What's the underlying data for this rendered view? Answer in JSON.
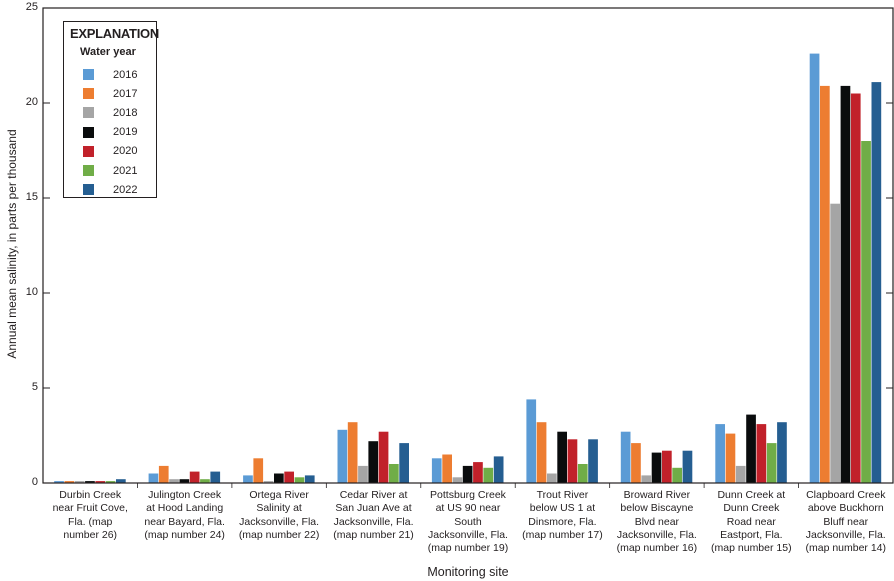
{
  "chart_data": {
    "type": "bar",
    "title": "",
    "xlabel": "Monitoring site",
    "ylabel": "Annual mean salinity, in parts per thousand",
    "ylim": [
      0,
      25
    ],
    "yticks": [
      0,
      5,
      10,
      15,
      20,
      25
    ],
    "grid": false,
    "legend_position": "upper-left",
    "legend_title": "EXPLANATION",
    "legend_subtitle": "Water year",
    "categories": [
      "Durbin Creek near Fruit Cove, Fla. (map number 26)",
      "Julington Creek at Hood Landing near Bayard, Fla. (map number 24)",
      "Ortega River Salinity at Jacksonville, Fla. (map number 22)",
      "Cedar River at San Juan Ave at Jacksonville, Fla. (map number 21)",
      "Pottsburg Creek at US 90 near South Jacksonville, Fla. (map number 19)",
      "Trout River below US 1 at Dinsmore, Fla. (map number 17)",
      "Broward River below Biscayne Blvd near Jacksonville, Fla. (map number 16)",
      "Dunn Creek at Dunn Creek Road near Eastport, Fla. (map number 15)",
      "Clapboard Creek above Buckhorn Bluff near Jacksonville, Fla. (map number 14)"
    ],
    "category_labels": [
      "Durbin Creek\nnear Fruit Cove,\nFla. (map\nnumber 26)",
      "Julington Creek\nat Hood Landing\nnear Bayard, Fla.\n(map number 24)",
      "Ortega River\nSalinity at\nJacksonville, Fla.\n(map number 22)",
      "Cedar River at\nSan Juan Ave at\nJacksonville, Fla.\n(map number 21)",
      "Pottsburg Creek\nat US 90 near\nSouth\nJacksonville, Fla.\n(map number 19)",
      "Trout River\nbelow US 1 at\nDinsmore, Fla.\n(map number 17)",
      "Broward River\nbelow Biscayne\nBlvd near\nJacksonville, Fla.\n(map number 16)",
      "Dunn Creek at\nDunn Creek\nRoad near\nEastport, Fla.\n(map number 15)",
      "Clapboard Creek\nabove Buckhorn\nBluff near\nJacksonville, Fla.\n(map number 14)"
    ],
    "series": [
      {
        "name": "2016",
        "color": "#5b9bd5",
        "values": [
          0.1,
          0.5,
          0.4,
          2.8,
          1.3,
          4.4,
          2.7,
          3.1,
          22.6
        ]
      },
      {
        "name": "2017",
        "color": "#ed7d31",
        "values": [
          0.1,
          0.9,
          1.3,
          3.2,
          1.5,
          3.2,
          2.1,
          2.6,
          20.9
        ]
      },
      {
        "name": "2018",
        "color": "#a5a5a5",
        "values": [
          0.1,
          0.2,
          0.1,
          0.9,
          0.3,
          0.5,
          0.4,
          0.9,
          14.7
        ]
      },
      {
        "name": "2019",
        "color": "#0a0c0d",
        "values": [
          0.1,
          0.2,
          0.5,
          2.2,
          0.9,
          2.7,
          1.6,
          3.6,
          20.9
        ]
      },
      {
        "name": "2020",
        "color": "#c1212a",
        "values": [
          0.1,
          0.6,
          0.6,
          2.7,
          1.1,
          2.3,
          1.7,
          3.1,
          20.5
        ]
      },
      {
        "name": "2021",
        "color": "#70ad47",
        "values": [
          0.1,
          0.2,
          0.3,
          1.0,
          0.8,
          1.0,
          0.8,
          2.1,
          18.0
        ]
      },
      {
        "name": "2022",
        "color": "#255e91",
        "values": [
          0.2,
          0.6,
          0.4,
          2.1,
          1.4,
          2.3,
          1.7,
          3.2,
          21.1
        ]
      }
    ]
  }
}
